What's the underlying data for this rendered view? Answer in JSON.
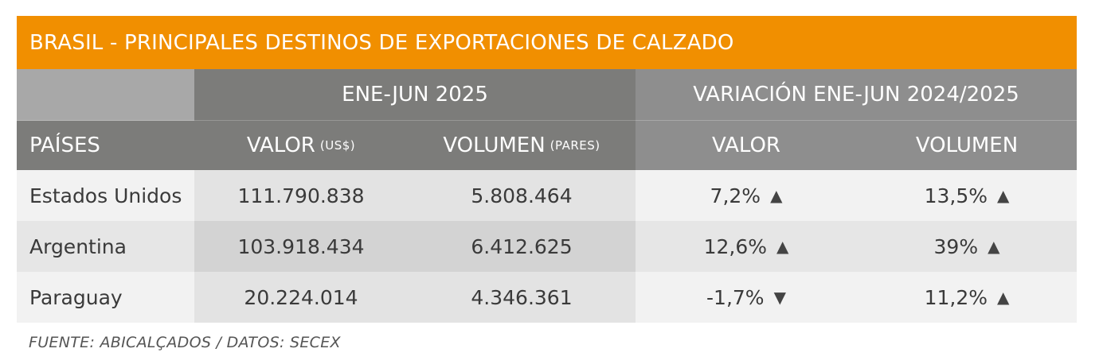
{
  "title": "BRASIL - PRINCIPALES DESTINOS DE EXPORTACIONES DE CALZADO",
  "group_headers": {
    "period": "ENE-JUN 2025",
    "variation": "VARIACIÓN ENE-JUN 2024/2025"
  },
  "columns": {
    "country": "PAÍSES",
    "value": "VALOR",
    "value_unit": "(US$)",
    "volume": "VOLUMEN",
    "volume_unit": "(PARES)",
    "var_value": "VALOR",
    "var_volume": "VOLUMEN"
  },
  "rows": [
    {
      "country": "Estados Unidos",
      "value": "111.790.838",
      "volume": "5.808.464",
      "var_value": "7,2%",
      "var_value_dir": "▲",
      "var_volume": "13,5%",
      "var_volume_dir": "▲"
    },
    {
      "country": "Argentina",
      "value": "103.918.434",
      "volume": "6.412.625",
      "var_value": "12,6%",
      "var_value_dir": "▲",
      "var_volume": "39%",
      "var_volume_dir": "▲"
    },
    {
      "country": "Paraguay",
      "value": "20.224.014",
      "volume": "4.346.361",
      "var_value": "-1,7%",
      "var_value_dir": "▼",
      "var_volume": "11,2%",
      "var_volume_dir": "▲"
    }
  ],
  "source": "FUENTE: ABICALÇADOS / DATOS: SECEX",
  "colors": {
    "accent": "#F18F00",
    "header_dark": "#7C7C7A",
    "header_mid": "#8E8E8E"
  }
}
